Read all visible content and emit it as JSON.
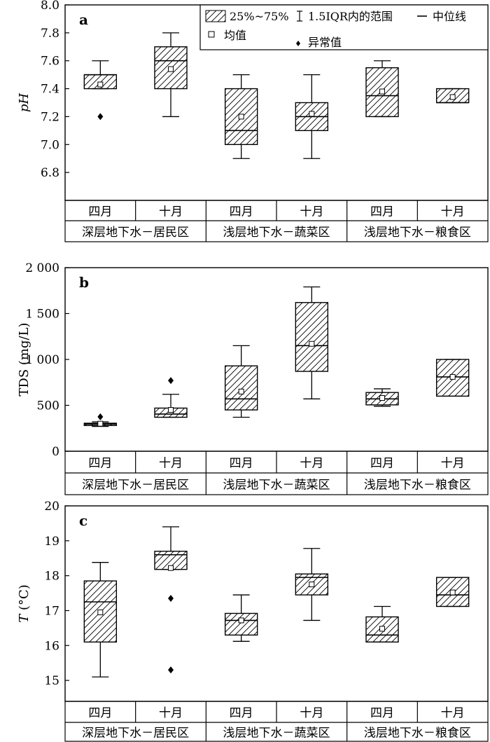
{
  "chart_data": [
    {
      "type": "box",
      "panel_label": "a",
      "ylabel": "pH",
      "ylim": [
        6.6,
        8.0
      ],
      "yticks": [
        6.8,
        7.0,
        7.2,
        7.4,
        7.6,
        7.8,
        8.0
      ],
      "ytick_labels": [
        "6.8",
        "7.0",
        "7.2",
        "7.4",
        "7.6",
        "7.8",
        "8.0"
      ],
      "categories": [
        "四月",
        "十月",
        "四月",
        "十月",
        "四月",
        "十月"
      ],
      "groups": [
        "深层地下水－居民区",
        "浅层地下水－蔬菜区",
        "浅层地下水－粮食区"
      ],
      "legend": {
        "box": "25%~75%",
        "whisker": "1.5IQR内的范围",
        "median": "中位线",
        "mean": "均值",
        "outlier": "异常值"
      },
      "boxes": [
        {
          "min": 7.4,
          "q1": 7.4,
          "median": 7.5,
          "q3": 7.5,
          "max": 7.6,
          "mean": 7.43,
          "outliers": [
            7.2
          ]
        },
        {
          "min": 7.2,
          "q1": 7.4,
          "median": 7.6,
          "q3": 7.7,
          "max": 7.8,
          "mean": 7.54,
          "outliers": []
        },
        {
          "min": 6.9,
          "q1": 7.0,
          "median": 7.1,
          "q3": 7.4,
          "max": 7.5,
          "mean": 7.2,
          "outliers": []
        },
        {
          "min": 6.9,
          "q1": 7.1,
          "median": 7.2,
          "q3": 7.3,
          "max": 7.5,
          "mean": 7.22,
          "outliers": []
        },
        {
          "min": 7.2,
          "q1": 7.2,
          "median": 7.35,
          "q3": 7.55,
          "max": 7.6,
          "mean": 7.38,
          "outliers": []
        },
        {
          "min": 7.3,
          "q1": 7.3,
          "median": 7.3,
          "q3": 7.4,
          "max": 7.4,
          "mean": 7.34,
          "outliers": []
        }
      ]
    },
    {
      "type": "box",
      "panel_label": "b",
      "ylabel": "TDS (mg/L)",
      "ylim": [
        0,
        2000
      ],
      "yticks": [
        0,
        500,
        1000,
        1500,
        2000
      ],
      "ytick_labels": [
        "0",
        "500",
        "1 000",
        "1 500",
        "2 000"
      ],
      "categories": [
        "四月",
        "十月",
        "四月",
        "十月",
        "四月",
        "十月"
      ],
      "groups": [
        "深层地下水－居民区",
        "浅层地下水－蔬菜区",
        "浅层地下水－粮食区"
      ],
      "boxes": [
        {
          "min": 270,
          "q1": 280,
          "median": 295,
          "q3": 305,
          "max": 320,
          "mean": 300,
          "outliers": [
            375
          ]
        },
        {
          "min": 370,
          "q1": 370,
          "median": 405,
          "q3": 470,
          "max": 620,
          "mean": 450,
          "outliers": [
            770
          ]
        },
        {
          "min": 370,
          "q1": 450,
          "median": 570,
          "q3": 930,
          "max": 1150,
          "mean": 650,
          "outliers": []
        },
        {
          "min": 570,
          "q1": 870,
          "median": 1150,
          "q3": 1620,
          "max": 1790,
          "mean": 1170,
          "outliers": []
        },
        {
          "min": 490,
          "q1": 505,
          "median": 570,
          "q3": 640,
          "max": 680,
          "mean": 580,
          "outliers": []
        },
        {
          "min": 600,
          "q1": 600,
          "median": 810,
          "q3": 1000,
          "max": 1000,
          "mean": 810,
          "outliers": []
        }
      ]
    },
    {
      "type": "box",
      "panel_label": "c",
      "ylabel": "T (°C)",
      "ylabel_italic": "T",
      "ylabel_rest": "(°C)",
      "ylim": [
        14.4,
        20
      ],
      "yticks": [
        15,
        16,
        17,
        18,
        19,
        20
      ],
      "ytick_labels": [
        "15",
        "16",
        "17",
        "18",
        "19",
        "20"
      ],
      "categories": [
        "四月",
        "十月",
        "四月",
        "十月",
        "四月",
        "十月"
      ],
      "groups": [
        "深层地下水－居民区",
        "浅层地下水－蔬菜区",
        "浅层地下水－粮食区"
      ],
      "boxes": [
        {
          "min": 15.1,
          "q1": 16.1,
          "median": 17.25,
          "q3": 17.85,
          "max": 18.38,
          "mean": 16.95,
          "outliers": []
        },
        {
          "min": 18.18,
          "q1": 18.18,
          "median": 18.6,
          "q3": 18.7,
          "max": 19.4,
          "mean": 18.22,
          "outliers": [
            17.35,
            15.3
          ]
        },
        {
          "min": 16.12,
          "q1": 16.3,
          "median": 16.72,
          "q3": 16.92,
          "max": 17.45,
          "mean": 16.72,
          "outliers": []
        },
        {
          "min": 16.72,
          "q1": 17.45,
          "median": 17.95,
          "q3": 18.05,
          "max": 18.78,
          "mean": 17.75,
          "outliers": []
        },
        {
          "min": 16.1,
          "q1": 16.1,
          "median": 16.3,
          "q3": 16.82,
          "max": 17.12,
          "mean": 16.48,
          "outliers": []
        },
        {
          "min": 17.12,
          "q1": 17.12,
          "median": 17.45,
          "q3": 17.95,
          "max": 17.95,
          "mean": 17.52,
          "outliers": []
        }
      ]
    }
  ]
}
